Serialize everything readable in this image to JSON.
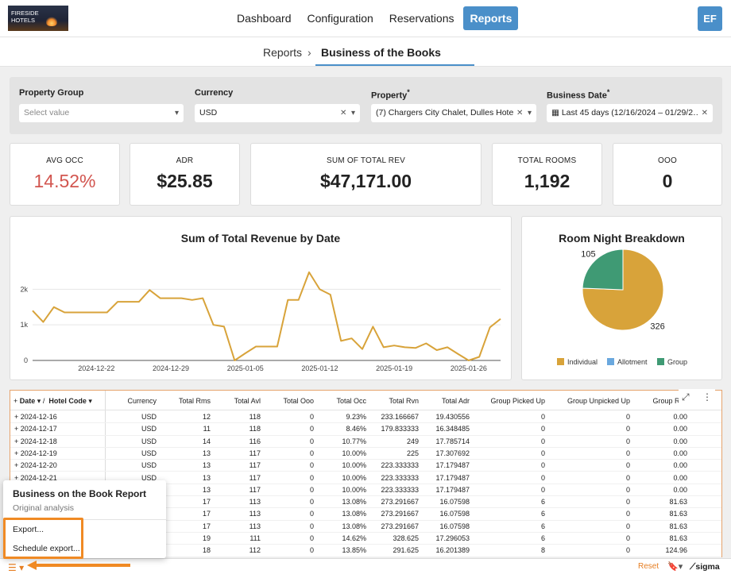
{
  "app": {
    "logo_text": [
      "FIRESIDE",
      "HOTELS"
    ],
    "nav": [
      {
        "label": "Dashboard",
        "active": false
      },
      {
        "label": "Configuration",
        "active": false
      },
      {
        "label": "Reservations",
        "active": false
      },
      {
        "label": "Reports",
        "active": true
      }
    ],
    "avatar": "EF"
  },
  "breadcrumb": {
    "parent": "Reports",
    "separator": "›",
    "current": "Business of the Books"
  },
  "filters": {
    "property_group": {
      "label": "Property Group",
      "placeholder": "Select value"
    },
    "currency": {
      "label": "Currency",
      "value": "USD"
    },
    "property": {
      "label": "Property",
      "required_mark": "*",
      "value": "(7) Chargers City Chalet, Dulles Hote…"
    },
    "business_date": {
      "label": "Business Date",
      "required_mark": "*",
      "value": "Last 45 days (12/16/2024 – 01/29/2…"
    }
  },
  "kpis": [
    {
      "label": "AVG OCC",
      "value": "14.52%",
      "color": "#d2554f"
    },
    {
      "label": "ADR",
      "value": "$25.85"
    },
    {
      "label": "SUM OF TOTAL REV",
      "value": "$47,171.00"
    },
    {
      "label": "TOTAL ROOMS",
      "value": "1,192"
    },
    {
      "label": "OOO",
      "value": "0"
    }
  ],
  "chart_data": [
    {
      "type": "line",
      "title": "Sum of Total Revenue by Date",
      "xlabel": "",
      "ylabel": "",
      "color": "#d8a33a",
      "x_start": "2024-12-16",
      "x_ticks": [
        "2024-12-22",
        "2024-12-29",
        "2025-01-05",
        "2025-01-12",
        "2025-01-19",
        "2025-01-26"
      ],
      "y_ticks": [
        "0",
        "1k",
        "2k"
      ],
      "ylim": [
        0,
        2700
      ],
      "x": [
        "2024-12-16",
        "2024-12-17",
        "2024-12-18",
        "2024-12-19",
        "2024-12-20",
        "2024-12-21",
        "2024-12-22",
        "2024-12-23",
        "2024-12-24",
        "2024-12-25",
        "2024-12-26",
        "2024-12-27",
        "2024-12-28",
        "2024-12-29",
        "2024-12-30",
        "2024-12-31",
        "2025-01-01",
        "2025-01-02",
        "2025-01-03",
        "2025-01-04",
        "2025-01-05",
        "2025-01-06",
        "2025-01-07",
        "2025-01-08",
        "2025-01-09",
        "2025-01-10",
        "2025-01-11",
        "2025-01-12",
        "2025-01-13",
        "2025-01-14",
        "2025-01-15",
        "2025-01-16",
        "2025-01-17",
        "2025-01-18",
        "2025-01-19",
        "2025-01-20",
        "2025-01-21",
        "2025-01-22",
        "2025-01-23",
        "2025-01-24",
        "2025-01-25",
        "2025-01-26",
        "2025-01-27",
        "2025-01-28",
        "2025-01-29"
      ],
      "values": [
        1400,
        1080,
        1500,
        1350,
        1350,
        1350,
        1350,
        1350,
        1650,
        1650,
        1650,
        1980,
        1750,
        1750,
        1750,
        1700,
        1750,
        1000,
        950,
        0,
        200,
        390,
        390,
        390,
        1700,
        1700,
        2480,
        2000,
        1850,
        550,
        620,
        320,
        950,
        370,
        420,
        370,
        350,
        480,
        290,
        370,
        180,
        0,
        100,
        930,
        1170
      ]
    },
    {
      "type": "pie",
      "title": "Room Night Breakdown",
      "categories": [
        "Individual",
        "Allotment",
        "Group"
      ],
      "values": [
        326,
        0,
        105
      ],
      "colors": [
        "#d8a33a",
        "#6aa8de",
        "#3f9a74"
      ],
      "data_labels": [
        "326",
        "",
        "105"
      ],
      "legend": "bottom"
    }
  ],
  "table": {
    "pivot_header": {
      "expand": "+",
      "col1": "Date",
      "divider": "/",
      "col2": "Hotel Code"
    },
    "columns": [
      "Currency",
      "Total Rms",
      "Total Avl",
      "Total Ooo",
      "Total Occ",
      "Total Rvn",
      "Total Adr",
      "Group Picked Up",
      "Group Unpicked Up",
      "Group Rvn"
    ],
    "rows": [
      {
        "date": "2024-12-16",
        "cells": [
          "USD",
          "12",
          "118",
          "0",
          "9.23%",
          "233.166667",
          "19.430556",
          "0",
          "0",
          "0.00"
        ]
      },
      {
        "date": "2024-12-17",
        "cells": [
          "USD",
          "11",
          "118",
          "0",
          "8.46%",
          "179.833333",
          "16.348485",
          "0",
          "0",
          "0.00"
        ]
      },
      {
        "date": "2024-12-18",
        "cells": [
          "USD",
          "14",
          "116",
          "0",
          "10.77%",
          "249",
          "17.785714",
          "0",
          "0",
          "0.00"
        ]
      },
      {
        "date": "2024-12-19",
        "cells": [
          "USD",
          "13",
          "117",
          "0",
          "10.00%",
          "225",
          "17.307692",
          "0",
          "0",
          "0.00"
        ]
      },
      {
        "date": "2024-12-20",
        "cells": [
          "USD",
          "13",
          "117",
          "0",
          "10.00%",
          "223.333333",
          "17.179487",
          "0",
          "0",
          "0.00"
        ]
      },
      {
        "date": "2024-12-21",
        "cells": [
          "USD",
          "13",
          "117",
          "0",
          "10.00%",
          "223.333333",
          "17.179487",
          "0",
          "0",
          "0.00"
        ]
      },
      {
        "date": "",
        "cells": [
          "USD",
          "13",
          "117",
          "0",
          "10.00%",
          "223.333333",
          "17.179487",
          "0",
          "0",
          "0.00"
        ]
      },
      {
        "date": "",
        "cells": [
          "",
          "17",
          "113",
          "0",
          "13.08%",
          "273.291667",
          "16.07598",
          "6",
          "0",
          "81.63"
        ]
      },
      {
        "date": "",
        "cells": [
          "",
          "17",
          "113",
          "0",
          "13.08%",
          "273.291667",
          "16.07598",
          "6",
          "0",
          "81.63"
        ]
      },
      {
        "date": "",
        "cells": [
          "",
          "17",
          "113",
          "0",
          "13.08%",
          "273.291667",
          "16.07598",
          "6",
          "0",
          "81.63"
        ]
      },
      {
        "date": "",
        "cells": [
          "",
          "19",
          "111",
          "0",
          "14.62%",
          "328.625",
          "17.296053",
          "6",
          "0",
          "81.63"
        ]
      },
      {
        "date": "",
        "cells": [
          "",
          "18",
          "112",
          "0",
          "13.85%",
          "291.625",
          "16.201389",
          "8",
          "0",
          "124.96"
        ]
      }
    ]
  },
  "menu": {
    "title": "Business on the Book Report",
    "subtitle": "Original analysis",
    "items": [
      "Export...",
      "Schedule export..."
    ]
  },
  "footer": {
    "reset": "Reset",
    "brand": "sigma"
  }
}
